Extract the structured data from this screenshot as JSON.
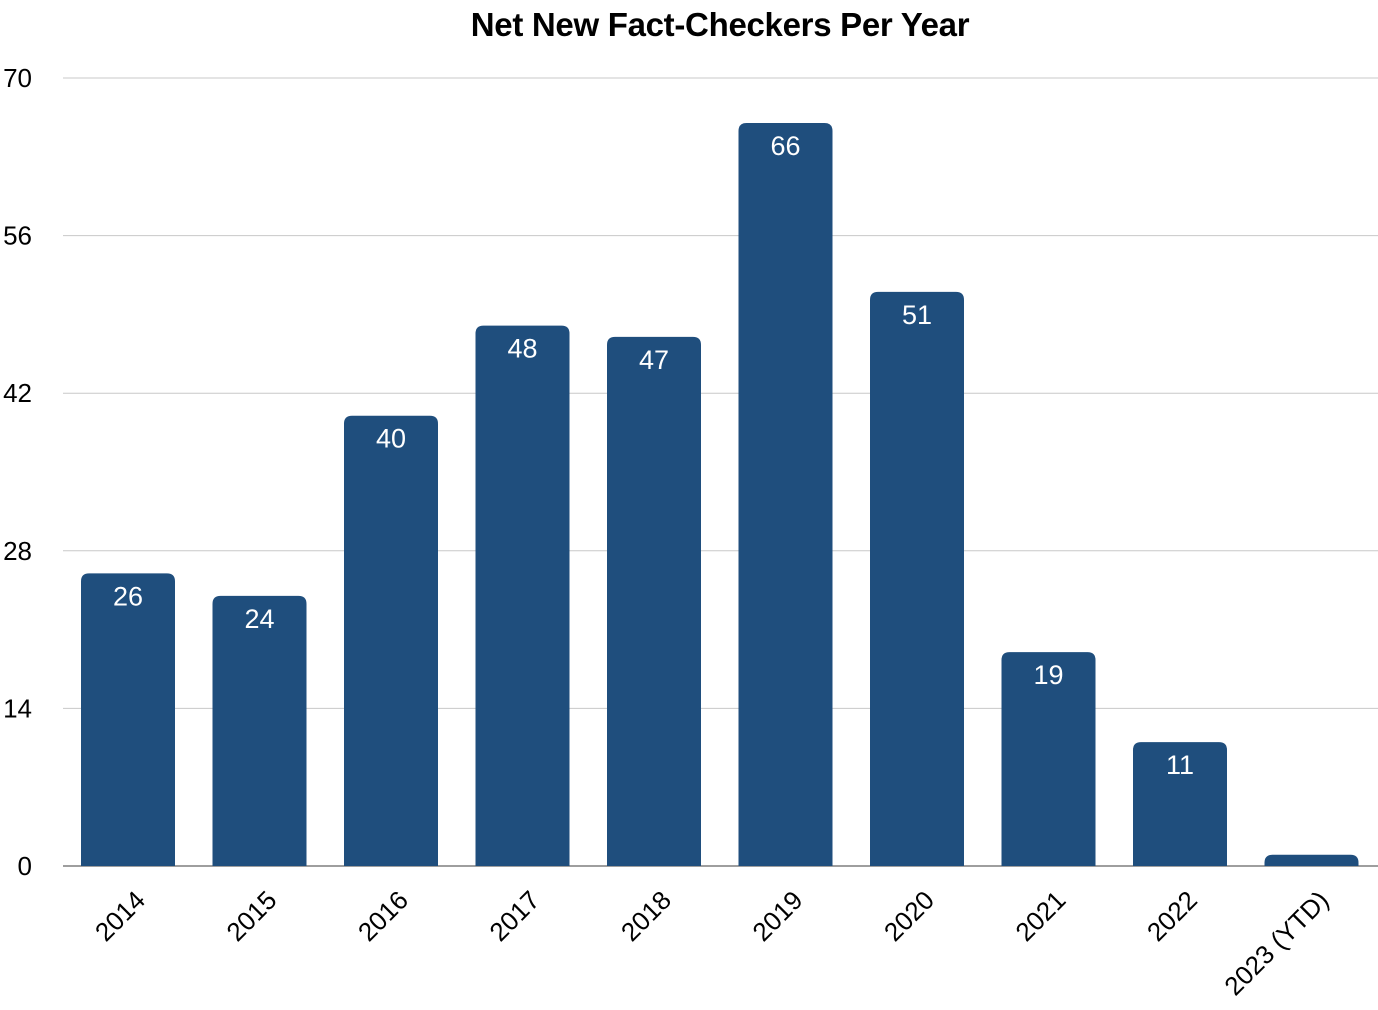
{
  "chart_data": {
    "type": "bar",
    "title": "Net New Fact-Checkers Per Year",
    "xlabel": "",
    "ylabel": "",
    "categories": [
      "2014",
      "2015",
      "2016",
      "2017",
      "2018",
      "2019",
      "2020",
      "2021",
      "2022",
      "2023 (YTD)"
    ],
    "values": [
      26,
      24,
      40,
      48,
      47,
      66,
      51,
      19,
      11,
      1
    ],
    "data_labels": [
      "26",
      "24",
      "40",
      "48",
      "47",
      "66",
      "51",
      "19",
      "11",
      ""
    ],
    "ylim": [
      0,
      70
    ],
    "yticks": [
      0,
      14,
      28,
      42,
      56,
      70
    ],
    "ytick_labels": [
      "0",
      "14",
      "28",
      "42",
      "56",
      "70"
    ],
    "grid": true,
    "legend": "none",
    "bar_color": "#1f4e7d",
    "label_color": "#ffffff"
  }
}
